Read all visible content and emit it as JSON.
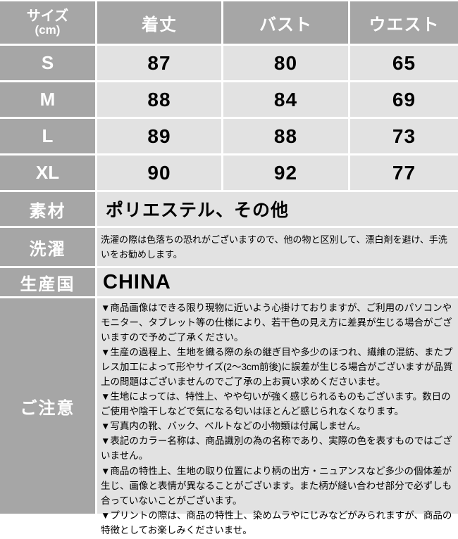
{
  "colors": {
    "header_bg": "#a6a6a6",
    "label_bg": "#a6a6a6",
    "data_cell_bg": "#e2e2e2",
    "divider": "#ffffff",
    "header_text": "#ffffff",
    "data_text": "#000000"
  },
  "size_table": {
    "header": {
      "size_label": "サイズ",
      "size_unit": "(cm)",
      "columns": [
        "着丈",
        "バスト",
        "ウエスト"
      ]
    },
    "rows": [
      {
        "label": "S",
        "values": [
          "87",
          "80",
          "65"
        ]
      },
      {
        "label": "M",
        "values": [
          "88",
          "84",
          "69"
        ]
      },
      {
        "label": "L",
        "values": [
          "89",
          "88",
          "73"
        ]
      },
      {
        "label": "XL",
        "values": [
          "90",
          "92",
          "77"
        ]
      }
    ]
  },
  "material": {
    "label": "素材",
    "value": "ポリエステル、その他"
  },
  "washing": {
    "label": "洗濯",
    "value": "洗濯の際は色落ちの恐れがございますので、他の物と区別して、漂白剤を避け、手洗いをお勧めします。"
  },
  "country": {
    "label": "生産国",
    "value": "CHINA"
  },
  "notice": {
    "label": "ご注意",
    "items": [
      "▼商品画像はできる限り現物に近いよう心掛けておりますが、ご利用のパソコンやモニター、タブレット等の仕様により、若干色の見え方に差異が生じる場合がございますので予めご了承ください。",
      "▼生産の過程上、生地を織る際の糸の継ぎ目や多少のほつれ、繊維の混紡、またプレス加工によって形やサイズ(2〜3cm前後)に誤差が生じる場合がございますが品質上の問題はございませんのでご了承の上お買い求めくださいませ。",
      "▼生地によっては、特性上、やや匂いが強く感じられるものもございます。数日のご使用や陰干しなどで気になる匂いはほとんど感じられなくなります。",
      "▼写真内の靴、バック、ベルトなどの小物類は付属しません。",
      "▼表記のカラー名称は、商品識別の為の名称であり、実際の色を表すものではございません。",
      "▼商品の特性上、生地の取り位置により柄の出方・ニュアンスなど多少の個体差が生じ、画像と表情が異なることがございます。また柄が縫い合わせ部分で必ずしも合っていないことがございます。",
      "▼プリントの際は、商品の特性上、染めムラやにじみなどがみられますが、商品の特徴としてお楽しみくださいませ。"
    ]
  }
}
